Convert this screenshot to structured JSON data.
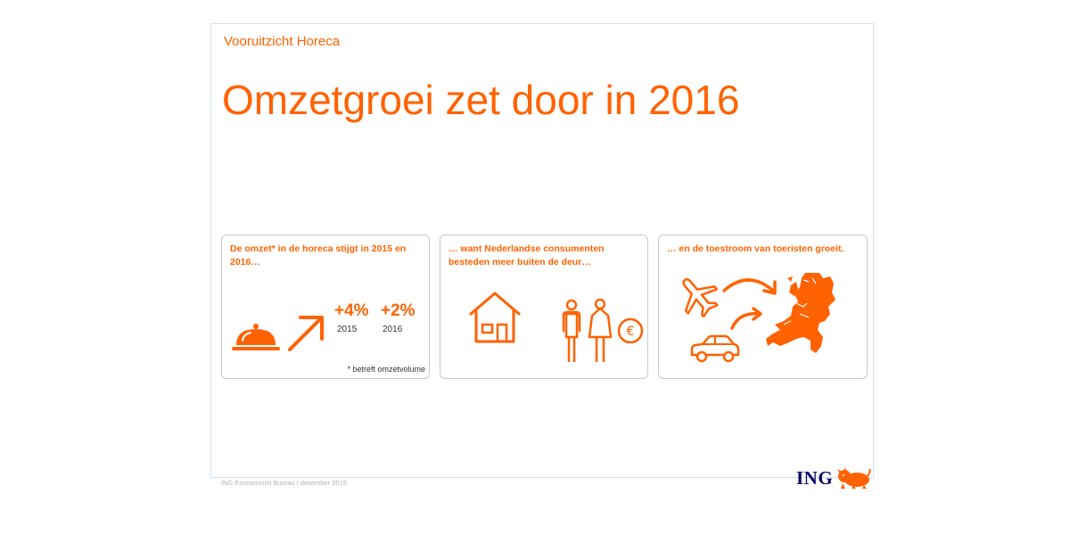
{
  "slide": {
    "subtitle": "Vooruitzicht Horeca",
    "title": "Omzetgroei zet door in 2016"
  },
  "cards": [
    {
      "text": "De omzet* in de horeca stijgt in 2015 en 2016…",
      "stats": [
        {
          "value": "+4%",
          "year": "2015"
        },
        {
          "value": "+2%",
          "year": "2016"
        }
      ],
      "footnote": "* betreft omzetvolume",
      "icons": [
        "cloche-icon",
        "arrow-up-right-icon"
      ]
    },
    {
      "text": "… want Nederlandse consumenten besteden meer buiten de deur…",
      "icons": [
        "house-icon",
        "man-icon",
        "woman-icon",
        "euro-coin-icon"
      ]
    },
    {
      "text": "… en de toestroom van toeristen groeit.",
      "icons": [
        "airplane-icon",
        "car-icon",
        "curved-arrow-icon",
        "netherlands-map-icon"
      ]
    }
  ],
  "footer": {
    "credit": "ING Economisch Bureau  / december 2015"
  },
  "logo": {
    "text": "ING",
    "icon": "lion-icon"
  },
  "colors": {
    "accent": "#FF6200",
    "logo_blue": "#000066",
    "border": "#c8c8c8",
    "frame": "#cfe3f3"
  }
}
